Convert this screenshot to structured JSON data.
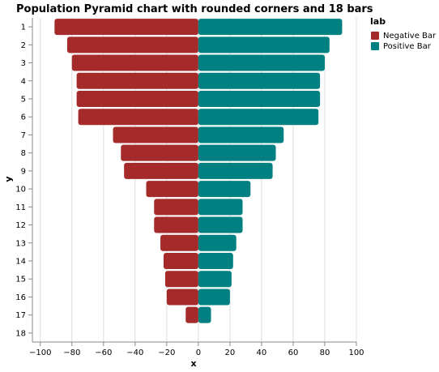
{
  "chart_data": {
    "type": "bar",
    "orientation": "horizontal",
    "title": "Population Pyramid chart with rounded corners and 18 bars",
    "xlabel": "x",
    "ylabel": "y",
    "xlim": [
      -105,
      100
    ],
    "x_ticks": [
      -100,
      -80,
      -60,
      -40,
      -20,
      0,
      20,
      40,
      60,
      80,
      100
    ],
    "x_tick_labels": [
      "−100",
      "−80",
      "−60",
      "−40",
      "−20",
      "0",
      "20",
      "40",
      "60",
      "80",
      "100"
    ],
    "categories": [
      "1",
      "2",
      "3",
      "4",
      "5",
      "6",
      "7",
      "8",
      "9",
      "10",
      "11",
      "12",
      "13",
      "14",
      "15",
      "16",
      "17",
      "18"
    ],
    "series": [
      {
        "name": "Negative Bar",
        "color": "#a52a2a",
        "values": [
          -91,
          -83,
          -80,
          -77,
          -77,
          -76,
          -54,
          -49,
          -47,
          -33,
          -28,
          -28,
          -24,
          -22,
          -21,
          -20,
          -8,
          0
        ]
      },
      {
        "name": "Positive Bar",
        "color": "#008080",
        "values": [
          91,
          83,
          80,
          77,
          77,
          76,
          54,
          49,
          47,
          33,
          28,
          28,
          24,
          22,
          21,
          20,
          8,
          0
        ]
      }
    ],
    "legend_title": "lab",
    "legend_position": "top-right",
    "grid": true
  }
}
